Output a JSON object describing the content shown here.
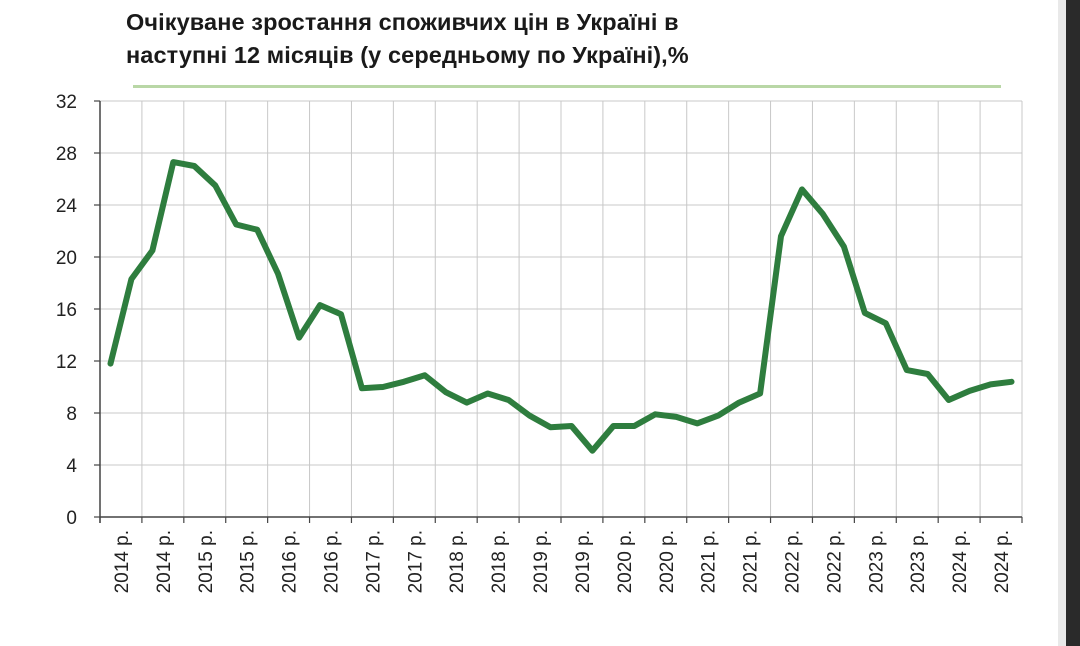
{
  "title_lines": [
    "Очікуване зростання споживчих цін в Україні в",
    "наступні 12 місяців (у середньому по Україні),%"
  ],
  "colors": {
    "line": "#2e7d3e",
    "grid": "#c8c8c8",
    "title_rule": "#b9d7a6"
  },
  "chart_data": {
    "type": "line",
    "title": "Очікуване зростання споживчих цін в Україні в наступні 12 місяців (у середньому по Україні),%",
    "ylim": [
      0,
      32
    ],
    "yticks": [
      0,
      4,
      8,
      12,
      16,
      20,
      24,
      28,
      32
    ],
    "grid": true,
    "legend": "none",
    "x_tick_labels": [
      "2014 р.",
      "2014 р.",
      "2015 р.",
      "2015 р.",
      "2016 р.",
      "2016 р.",
      "2017 р.",
      "2017 р.",
      "2018 р.",
      "2018 р.",
      "2019 р.",
      "2019 р.",
      "2020 р.",
      "2020 р.",
      "2021 р.",
      "2021 р.",
      "2022 р.",
      "2022 р.",
      "2023 р.",
      "2023 р.",
      "2024 р.",
      "2024 р."
    ],
    "x": [
      "2014 Q1",
      "2014 Q2",
      "2014 Q3",
      "2014 Q4",
      "2015 Q1",
      "2015 Q2",
      "2015 Q3",
      "2015 Q4",
      "2016 Q1",
      "2016 Q2",
      "2016 Q3",
      "2016 Q4",
      "2017 Q1",
      "2017 Q2",
      "2017 Q3",
      "2017 Q4",
      "2018 Q1",
      "2018 Q2",
      "2018 Q3",
      "2018 Q4",
      "2019 Q1",
      "2019 Q2",
      "2019 Q3",
      "2019 Q4",
      "2020 Q1",
      "2020 Q2",
      "2020 Q3",
      "2020 Q4",
      "2021 Q1",
      "2021 Q2",
      "2021 Q3",
      "2021 Q4",
      "2022 Q1",
      "2022 Q2",
      "2022 Q3",
      "2022 Q4",
      "2023 Q1",
      "2023 Q2",
      "2023 Q3",
      "2023 Q4",
      "2024 Q1",
      "2024 Q2",
      "2024 Q3",
      "2024 Q4"
    ],
    "series": [
      {
        "values": [
          11.8,
          18.3,
          20.5,
          27.3,
          27.0,
          25.5,
          22.5,
          22.1,
          18.7,
          13.8,
          16.3,
          15.6,
          9.9,
          10.0,
          10.4,
          10.9,
          9.6,
          8.8,
          9.5,
          9.0,
          7.8,
          6.9,
          7.0,
          5.1,
          7.0,
          7.0,
          7.9,
          7.7,
          7.2,
          7.8,
          8.8,
          9.5,
          21.6,
          25.2,
          23.3,
          20.8,
          15.7,
          14.9,
          11.3,
          11.0,
          9.0,
          9.7,
          10.2,
          10.4
        ]
      }
    ]
  }
}
